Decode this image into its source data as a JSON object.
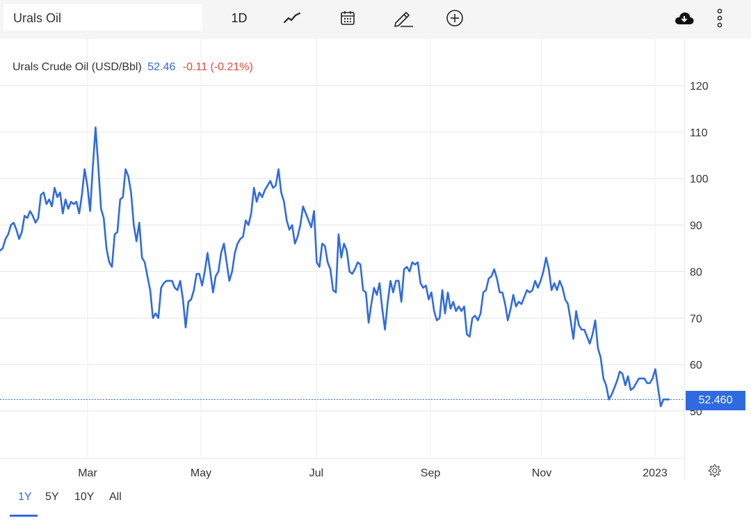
{
  "toolbar": {
    "symbol_value": "Urals Oil",
    "interval_label": "1D",
    "icons": [
      "line-chart-icon",
      "calendar-icon",
      "pencil-icon",
      "plus-circle-icon",
      "cloud-download-icon",
      "more-vertical-icon"
    ]
  },
  "legend": {
    "name": "Urals Crude Oil (USD/Bbl)",
    "value": "52.46",
    "change": "-0.11 (-0.21%)"
  },
  "last_price_label": "52.460",
  "ranges": [
    "1Y",
    "5Y",
    "10Y",
    "All"
  ],
  "active_range": "1Y",
  "colors": {
    "line": "#2f6ae0",
    "negative": "#e0463c",
    "grid": "#e6e6e6",
    "toolbar_bg": "#f5f5f5"
  },
  "chart_data": {
    "type": "line",
    "title": "Urals Crude Oil (USD/Bbl)",
    "x_tick_labels": [
      "Mar",
      "May",
      "Jul",
      "Sep",
      "Nov",
      "2023"
    ],
    "y_tick_labels": [
      "50",
      "60",
      "70",
      "80",
      "90",
      "100",
      "110",
      "120"
    ],
    "y_ticks": [
      50,
      60,
      70,
      80,
      90,
      100,
      110,
      120
    ],
    "ylim": [
      40,
      130
    ],
    "grid": true,
    "last_value": 52.46,
    "series": [
      {
        "values": [
          84.5,
          85,
          87,
          88,
          90,
          90.5,
          89,
          87,
          88.5,
          92,
          91.5,
          93,
          92,
          90.5,
          91.5,
          96.5,
          97,
          94.5,
          95.5,
          94,
          98,
          96,
          97,
          92.5,
          95.5,
          93.5,
          95,
          94.5,
          95,
          92.5,
          96.5,
          102,
          98.5,
          93,
          102.5,
          111,
          102.5,
          93.5,
          91.5,
          85,
          82,
          81,
          88,
          88.5,
          95.5,
          96,
          102,
          100.5,
          97,
          90,
          86.5,
          90.5,
          83,
          82,
          79,
          76,
          70,
          71,
          70,
          76.5,
          77.5,
          78,
          78,
          78,
          76.5,
          76,
          78,
          74,
          68,
          73.5,
          74,
          76,
          79.5,
          79.5,
          77,
          80,
          84,
          80,
          75.5,
          79,
          80,
          84,
          86,
          82,
          78,
          80,
          84,
          86,
          87,
          87.5,
          91,
          90,
          92.5,
          98,
          95,
          97,
          96,
          97.5,
          98.5,
          99.5,
          98,
          98.5,
          102,
          97,
          95,
          91,
          89,
          90,
          86,
          87.5,
          90,
          94,
          92.5,
          91,
          89.5,
          93,
          82,
          81,
          86,
          85.5,
          82,
          80.5,
          76,
          75.5,
          88,
          83,
          86,
          84.5,
          80,
          79.5,
          80.5,
          82,
          81.5,
          76,
          75.5,
          69,
          73,
          76.5,
          75,
          77.5,
          72,
          67.5,
          73.5,
          78,
          75.5,
          78,
          78,
          73.5,
          80.5,
          81,
          80,
          82,
          81.5,
          82,
          77.5,
          76.5,
          77,
          74,
          75.5,
          71.5,
          69.5,
          70,
          76,
          71,
          75.5,
          72,
          73.5,
          71.5,
          72.5,
          71.5,
          72.5,
          66.5,
          66,
          70,
          70.5,
          69.5,
          71,
          75.5,
          76,
          78.5,
          79,
          80.5,
          78.5,
          75.5,
          75.5,
          73,
          69.5,
          72,
          75,
          72.5,
          73.5,
          73,
          74.5,
          76,
          75.5,
          76,
          78,
          76.5,
          78,
          80,
          83,
          80.5,
          76,
          77.5,
          76,
          78,
          76.5,
          74,
          73,
          69.5,
          65.5,
          71.5,
          68.5,
          67.5,
          67.5,
          66,
          64.5,
          66.5,
          69.5,
          63.5,
          61.5,
          57,
          55.5,
          52.5,
          53.5,
          55,
          56.5,
          58.5,
          58,
          55.5,
          57.5,
          54.5,
          55,
          56,
          57,
          57,
          57,
          56,
          56,
          57,
          59,
          55,
          51,
          52.5,
          52.5,
          52.5
        ]
      }
    ]
  }
}
